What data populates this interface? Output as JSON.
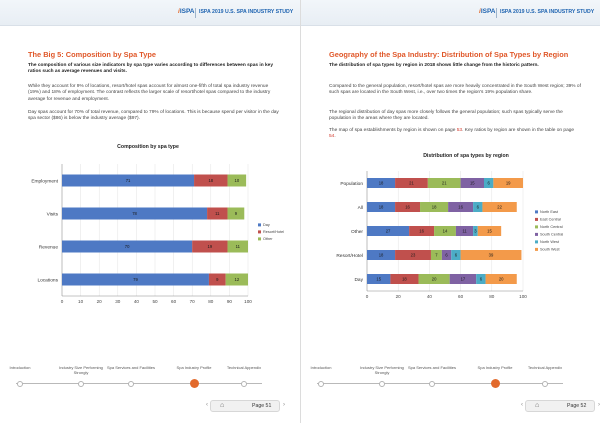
{
  "left": {
    "header": {
      "logo": "ISPA",
      "title": "ISPA 2019 U.S. SPA INDUSTRY STUDY"
    },
    "section_title": "The Big 5: Composition by Spa Type",
    "intro_bold": "The composition of various size indicators by spa type varies according to differences between spas in key ratios such as average revenues and visits.",
    "para1": "While they account for 9% of locations, resort/hotel spas account for almost one-fifth of total spa industry revenue (19%) and 18% of employment. The contrast reflects the larger scale of resort/hotel spas compared to the industry average for revenue and employment.",
    "para2": "Day spas account for 70% of total revenue, compared to 79% of locations. This is because spend per visitor in the day spa sector ($86) is below the industry average ($97).",
    "page_label": "Page 51"
  },
  "right": {
    "header": {
      "logo": "ISPA",
      "title": "ISPA 2019 U.S. SPA INDUSTRY STUDY"
    },
    "section_title": "Geography of the Spa Industry: Distribution of Spa Types by Region",
    "intro_bold": "The distribution of spa types by region in 2018 shows little change from the historic pattern.",
    "para1": "Compared to the general population, resort/hotel spas are more heavily concentrated in the South West region; 39% of such spas are located in the South West, i.e., over two times the region's 19% population share.",
    "para2": "The regional distribution of day spas more closely follows the general population; such spas typically serve the population in the areas where they are located.",
    "para3_pre": "The map of spa establishments by region is shown on page ",
    "para3_ref1": "53",
    "para3_mid": ". Key ratios by region are shown in the table on page ",
    "para3_ref2": "54",
    "para3_post": ".",
    "page_label": "Page 52"
  },
  "nav": {
    "steps": [
      "Introduction",
      "Industry Size Performing Strongly",
      "Spa Services and Facilities",
      "Spa Industry Profile",
      "Technical Appendix"
    ],
    "active_index": 3
  },
  "chart_data": [
    {
      "type": "bar",
      "orientation": "horizontal",
      "stacked": true,
      "title": "Composition by spa type",
      "categories": [
        "Employment",
        "Visits",
        "Revenue",
        "Locations"
      ],
      "series": [
        {
          "name": "Day",
          "values": [
            71,
            78,
            70,
            79
          ]
        },
        {
          "name": "Resort/Hotel",
          "values": [
            18,
            11,
            19,
            9
          ]
        },
        {
          "name": "Other",
          "values": [
            10,
            9,
            11,
            12
          ]
        }
      ],
      "colors": [
        "#4e79c4",
        "#c0504d",
        "#9bbb59"
      ],
      "xlim": [
        0,
        100
      ],
      "xticks": [
        0,
        10,
        20,
        30,
        40,
        50,
        60,
        70,
        80,
        90,
        100
      ],
      "legend": "right"
    },
    {
      "type": "bar",
      "orientation": "horizontal",
      "stacked": true,
      "title": "Distribution of spa types by region",
      "categories": [
        "Population",
        "All",
        "Other",
        "Resort/Hotel",
        "Day"
      ],
      "series": [
        {
          "name": "North East",
          "values": [
            18,
            18,
            27,
            18,
            15
          ]
        },
        {
          "name": "East Central",
          "values": [
            21,
            16,
            16,
            23,
            18
          ]
        },
        {
          "name": "North Central",
          "values": [
            21,
            18,
            14,
            7,
            20
          ]
        },
        {
          "name": "South Central",
          "values": [
            15,
            16,
            11,
            6,
            17
          ]
        },
        {
          "name": "North West",
          "values": [
            6,
            6,
            3,
            6,
            6
          ]
        },
        {
          "name": "South West",
          "values": [
            19,
            22,
            15,
            39,
            20
          ]
        }
      ],
      "colors": [
        "#4e79c4",
        "#c0504d",
        "#9bbb59",
        "#7f62a3",
        "#4bacc6",
        "#f39a4a"
      ],
      "xlim": [
        0,
        100
      ],
      "xticks": [
        0,
        20,
        40,
        60,
        80,
        100
      ],
      "legend": "right"
    }
  ]
}
